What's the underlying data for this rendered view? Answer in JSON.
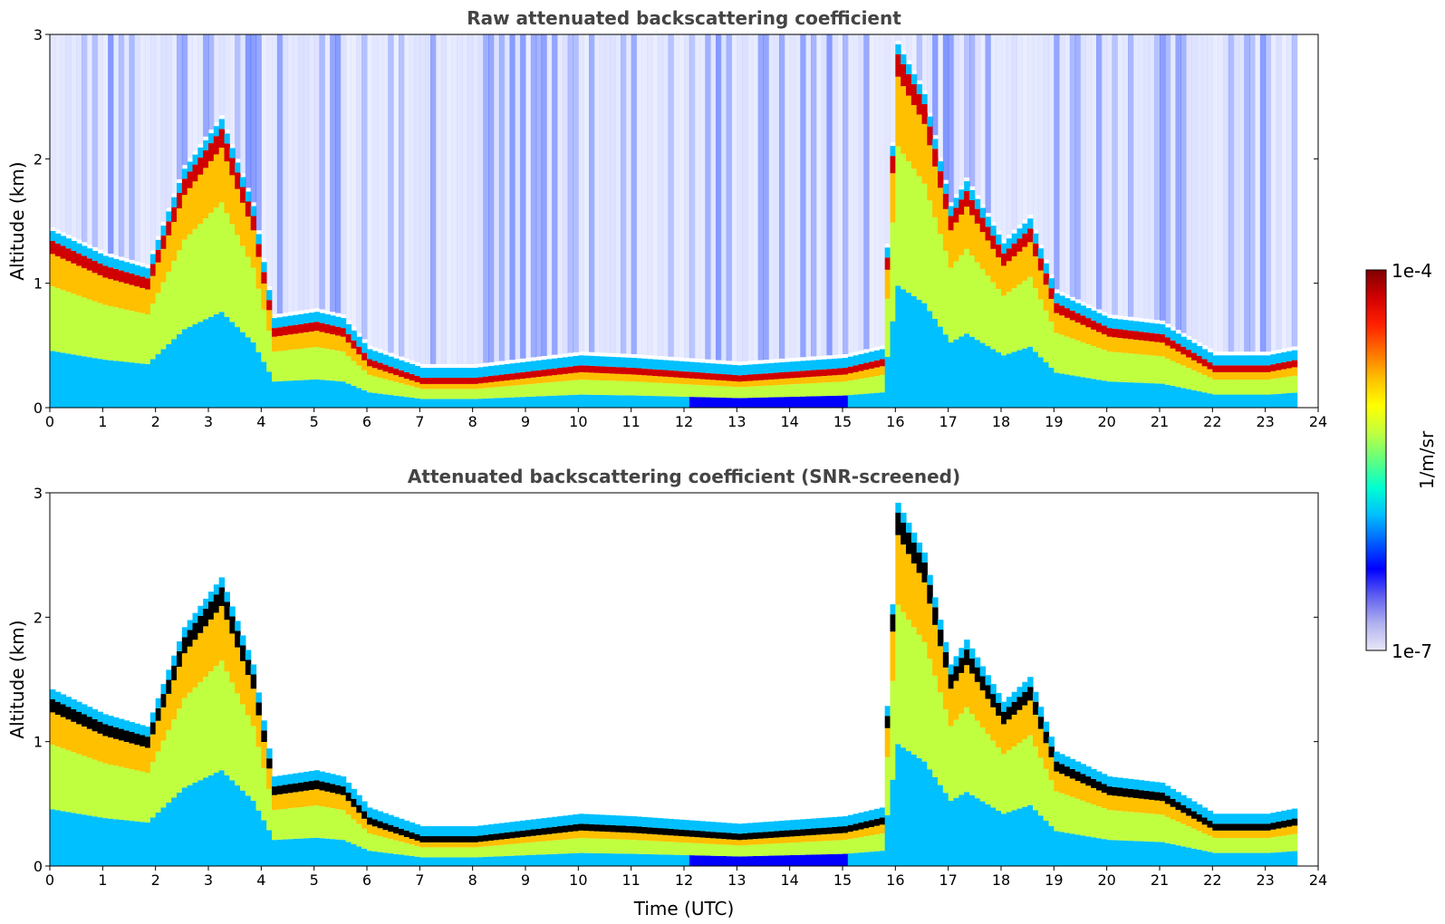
{
  "chart_data": [
    {
      "type": "heatmap",
      "title": "Raw attenuated backscattering coefficient",
      "xlabel": "",
      "ylabel": "Altitude (km)",
      "xlim": [
        0,
        24
      ],
      "ylim": [
        0,
        3
      ],
      "xticks": [
        0,
        1,
        2,
        3,
        4,
        5,
        6,
        7,
        8,
        9,
        10,
        11,
        12,
        13,
        14,
        15,
        16,
        17,
        18,
        19,
        20,
        21,
        22,
        23,
        24
      ],
      "yticks": [
        0,
        1,
        2,
        3
      ],
      "data_end_time": 23.6,
      "cloud_base_profile": [
        {
          "t": 0.0,
          "h": 1.3
        },
        {
          "t": 1.0,
          "h": 1.1
        },
        {
          "t": 1.8,
          "h": 1.0
        },
        {
          "t": 2.5,
          "h": 1.8
        },
        {
          "t": 3.2,
          "h": 2.2
        },
        {
          "t": 3.8,
          "h": 1.5
        },
        {
          "t": 4.2,
          "h": 0.6
        },
        {
          "t": 5.0,
          "h": 0.65
        },
        {
          "t": 5.5,
          "h": 0.6
        },
        {
          "t": 6.0,
          "h": 0.35
        },
        {
          "t": 7.0,
          "h": 0.2
        },
        {
          "t": 8.0,
          "h": 0.2
        },
        {
          "t": 9.0,
          "h": 0.25
        },
        {
          "t": 10.0,
          "h": 0.3
        },
        {
          "t": 11.0,
          "h": 0.28
        },
        {
          "t": 12.0,
          "h": 0.25
        },
        {
          "t": 13.0,
          "h": 0.22
        },
        {
          "t": 14.0,
          "h": 0.25
        },
        {
          "t": 15.0,
          "h": 0.28
        },
        {
          "t": 15.7,
          "h": 0.35
        },
        {
          "t": 16.0,
          "h": 2.8
        },
        {
          "t": 16.5,
          "h": 2.4
        },
        {
          "t": 17.0,
          "h": 1.5
        },
        {
          "t": 17.3,
          "h": 1.7
        },
        {
          "t": 18.0,
          "h": 1.2
        },
        {
          "t": 18.5,
          "h": 1.4
        },
        {
          "t": 19.0,
          "h": 0.8
        },
        {
          "t": 20.0,
          "h": 0.6
        },
        {
          "t": 21.0,
          "h": 0.55
        },
        {
          "t": 22.0,
          "h": 0.3
        },
        {
          "t": 23.0,
          "h": 0.3
        },
        {
          "t": 23.6,
          "h": 0.35
        }
      ]
    },
    {
      "type": "heatmap",
      "title": "Attenuated backscattering coefficient (SNR-screened)",
      "xlabel": "Time (UTC)",
      "ylabel": "Altitude (km)",
      "xlim": [
        0,
        24
      ],
      "ylim": [
        0,
        3
      ],
      "xticks": [
        0,
        1,
        2,
        3,
        4,
        5,
        6,
        7,
        8,
        9,
        10,
        11,
        12,
        13,
        14,
        15,
        16,
        17,
        18,
        19,
        20,
        21,
        22,
        23,
        24
      ],
      "yticks": [
        0,
        1,
        2,
        3
      ],
      "data_end_time": 23.6
    }
  ],
  "colorbar": {
    "label": "1/m/sr",
    "max_label": "1e-4",
    "min_label": "1e-7",
    "colors": [
      "#e8e8f8",
      "#b0b0f0",
      "#6060f0",
      "#0000ff",
      "#0060ff",
      "#00c0ff",
      "#00ffd0",
      "#60ff80",
      "#c0ff40",
      "#ffff00",
      "#ffc000",
      "#ff7000",
      "#ff2000",
      "#d00000",
      "#800000"
    ]
  }
}
